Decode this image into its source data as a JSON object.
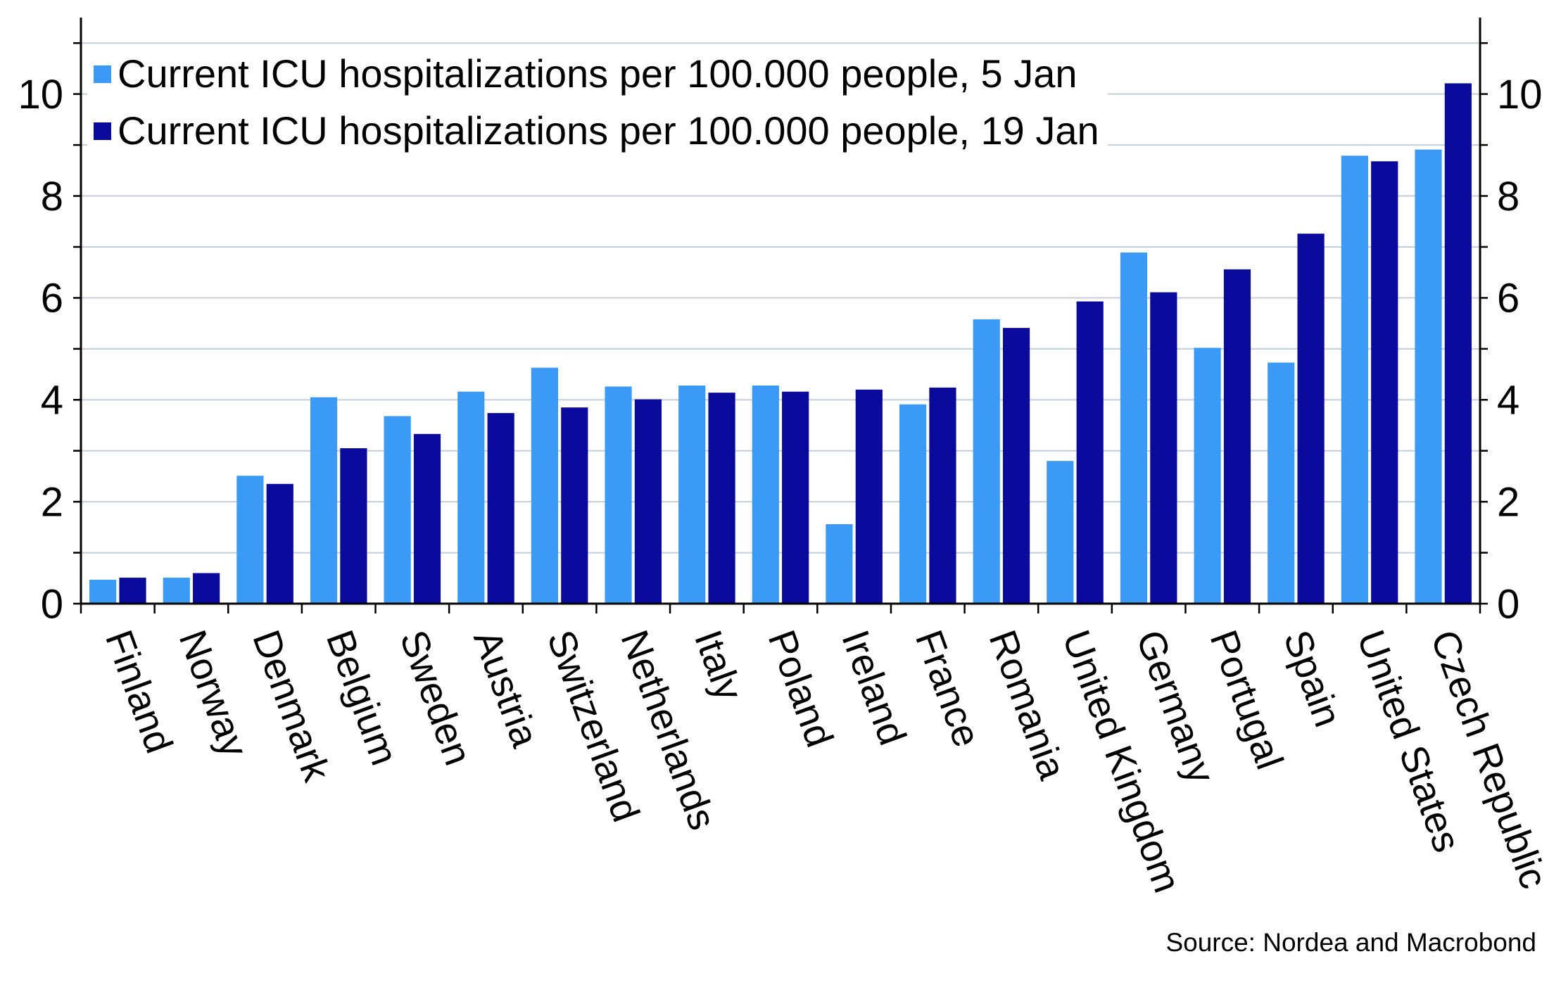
{
  "chart_data": {
    "type": "bar",
    "categories": [
      "Finland",
      "Norway",
      "Denmark",
      "Belgium",
      "Sweden",
      "Austria",
      "Switzerland",
      "Netherlands",
      "Italy",
      "Poland",
      "Ireland",
      "France",
      "Romania",
      "United Kingdom",
      "Germany",
      "Portugal",
      "Spain",
      "United States",
      "Czech Republic"
    ],
    "series": [
      {
        "name": "Current ICU hospitalizations per 100.000 people, 5 Jan",
        "color": "#3b9af5",
        "values": [
          0.47,
          0.51,
          2.51,
          4.05,
          3.68,
          4.16,
          4.63,
          4.26,
          4.28,
          4.28,
          1.56,
          3.91,
          5.58,
          2.8,
          6.89,
          5.02,
          4.73,
          8.79,
          8.91
        ]
      },
      {
        "name": "Current ICU hospitalizations per 100.000 people, 19 Jan",
        "color": "#0a0a9c",
        "values": [
          0.51,
          0.6,
          2.35,
          3.05,
          3.33,
          3.74,
          3.85,
          4.01,
          4.14,
          4.16,
          4.2,
          4.24,
          5.41,
          5.93,
          6.11,
          6.56,
          7.26,
          8.68,
          10.21
        ]
      }
    ],
    "yticks": [
      0,
      2,
      4,
      6,
      8,
      10
    ],
    "ylim": [
      0,
      11.5
    ],
    "y_axis_both_sides": true,
    "grid": true,
    "legend": "top-left"
  },
  "source": "Source: Nordea and Macrobond"
}
